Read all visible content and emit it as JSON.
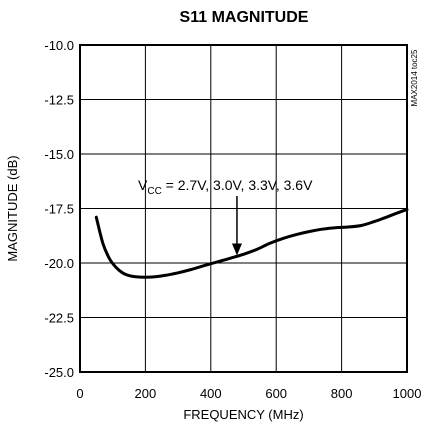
{
  "chart_data": {
    "type": "line",
    "title": "S11 MAGNITUDE",
    "xlabel": "FREQUENCY (MHz)",
    "ylabel": "MAGNITUDE (dB)",
    "xlim": [
      0,
      1000
    ],
    "ylim": [
      -25.0,
      -10.0
    ],
    "x_ticks": [
      0,
      200,
      400,
      600,
      800,
      1000
    ],
    "x_tick_labels": [
      "0",
      "200",
      "400",
      "600",
      "800",
      "1000"
    ],
    "y_ticks": [
      -10.0,
      -12.5,
      -15.0,
      -17.5,
      -20.0,
      -22.5,
      -25.0
    ],
    "y_tick_labels": [
      "-10.0",
      "-12.5",
      "-15.0",
      "-17.5",
      "-20.0",
      "-22.5",
      "-25.0"
    ],
    "grid": true,
    "side_label": "MAX2014 toc25",
    "annotation": {
      "prefix": "V",
      "subscript": "CC",
      "suffix": " = 2.7V, 3.0V, 3.3V, 3.6V",
      "arrow_to": [
        480,
        -19.7
      ]
    },
    "series": [
      {
        "x": [
          50,
          70,
          90,
          110,
          130,
          150,
          170,
          200,
          230,
          260,
          300,
          340,
          380,
          420,
          460,
          500,
          540,
          580,
          620,
          660,
          700,
          740,
          780,
          820,
          860,
          900,
          940,
          980,
          1000
        ],
        "y": [
          -17.9,
          -19.1,
          -19.8,
          -20.2,
          -20.45,
          -20.58,
          -20.63,
          -20.65,
          -20.63,
          -20.57,
          -20.45,
          -20.3,
          -20.12,
          -19.95,
          -19.78,
          -19.6,
          -19.38,
          -19.1,
          -18.88,
          -18.7,
          -18.56,
          -18.45,
          -18.38,
          -18.35,
          -18.28,
          -18.1,
          -17.88,
          -17.65,
          -17.55
        ]
      }
    ]
  }
}
